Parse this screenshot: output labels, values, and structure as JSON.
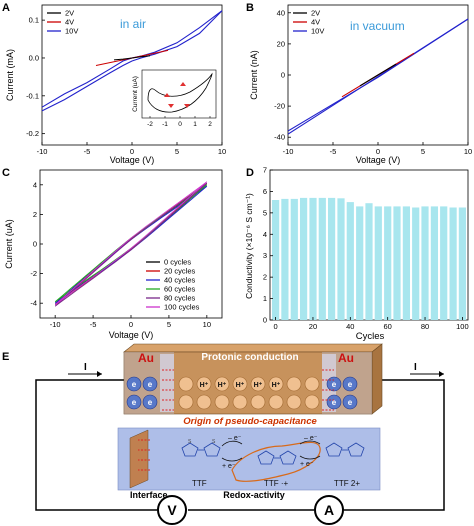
{
  "panels": {
    "A": {
      "letter": "A",
      "annotation": "in air",
      "xlabel": "Voltage (V)",
      "ylabel": "Current (mA)",
      "xticks": [
        "-10",
        "-5",
        "0",
        "5",
        "10"
      ],
      "yticks": [
        "0.1",
        "0.0",
        "-0.1",
        "-0.2"
      ],
      "legend": [
        {
          "label": "2V",
          "color": "#000000"
        },
        {
          "label": "4V",
          "color": "#cc0000"
        },
        {
          "label": "10V",
          "color": "#2222cc"
        }
      ],
      "inset": {
        "ylabel": "Current (uA)",
        "xticks": [
          "-2",
          "-1",
          "0",
          "1",
          "2"
        ]
      }
    },
    "B": {
      "letter": "B",
      "annotation": "in vacuum",
      "xlabel": "Voltage (V)",
      "ylabel": "Current (nA)",
      "xticks": [
        "-10",
        "-5",
        "0",
        "5",
        "10"
      ],
      "yticks": [
        "40",
        "20",
        "0",
        "-20",
        "-40"
      ],
      "legend": [
        {
          "label": "2V",
          "color": "#000000"
        },
        {
          "label": "4V",
          "color": "#cc0000"
        },
        {
          "label": "10V",
          "color": "#2222cc"
        }
      ]
    },
    "C": {
      "letter": "C",
      "xlabel": "Voltage (V)",
      "ylabel": "Current (uA)",
      "xticks": [
        "-10",
        "-5",
        "0",
        "5",
        "10"
      ],
      "yticks": [
        "4",
        "2",
        "0",
        "-2",
        "-4"
      ],
      "legend": [
        {
          "label": "0 cycles",
          "color": "#000000"
        },
        {
          "label": "20 cycles",
          "color": "#cc0000"
        },
        {
          "label": "40 cycles",
          "color": "#2222cc"
        },
        {
          "label": "60 cycles",
          "color": "#22aa22"
        },
        {
          "label": "80 cycles",
          "color": "#7a2a8a"
        },
        {
          "label": "100 cycles",
          "color": "#cc33cc"
        }
      ]
    },
    "D": {
      "letter": "D",
      "xlabel": "Cycles",
      "ylabel": "Conductivity (×10⁻⁶ S cm⁻¹)",
      "xticks": [
        "0",
        "20",
        "40",
        "60",
        "80",
        "100"
      ],
      "yticks": [
        "7",
        "6",
        "5",
        "4",
        "3",
        "2",
        "1",
        "0"
      ],
      "bar_color": "#a8e6ee"
    },
    "E": {
      "letter": "E",
      "title": "Protonic conduction",
      "subtitle": "Origin of pseudo-capacitance",
      "electrode": "Au",
      "current_label": "I",
      "interface_label": "Interface",
      "redox_label": "Redox-activity",
      "ttf_labels": [
        "TTF",
        "TTF ·+",
        "TTF 2+"
      ],
      "electron_label": "e",
      "proton_label": "H⁺",
      "meter_v": "V",
      "meter_a": "A"
    }
  },
  "chart_data": [
    {
      "panel": "A",
      "type": "line",
      "xlabel": "Voltage (V)",
      "ylabel": "Current (mA)",
      "xlim": [
        -10,
        10
      ],
      "ylim": [
        -0.23,
        0.14
      ],
      "series": [
        {
          "name": "2V",
          "x": [
            -2,
            -1,
            0,
            1,
            2
          ],
          "y": [
            -0.005,
            -0.003,
            0.0,
            0.003,
            0.006
          ]
        },
        {
          "name": "4V",
          "x": [
            -4,
            -2,
            0,
            2,
            4
          ],
          "y": [
            -0.02,
            -0.01,
            0.0,
            0.01,
            0.02
          ]
        },
        {
          "name": "10V",
          "x": [
            -10,
            -7.5,
            -5,
            -2.5,
            -1,
            0,
            1,
            2.5,
            5,
            7.5,
            10
          ],
          "y_forward": [
            -0.13,
            -0.095,
            -0.065,
            -0.03,
            -0.008,
            0.0,
            0.005,
            0.015,
            0.04,
            0.08,
            0.125
          ],
          "y_reverse": [
            -0.14,
            -0.11,
            -0.075,
            -0.04,
            -0.02,
            -0.008,
            0.0,
            0.01,
            0.03,
            0.065,
            0.125
          ]
        }
      ]
    },
    {
      "panel": "B",
      "type": "line",
      "xlabel": "Voltage (V)",
      "ylabel": "Current (nA)",
      "xlim": [
        -10,
        10
      ],
      "ylim": [
        -45,
        45
      ],
      "series": [
        {
          "name": "2V",
          "x": [
            -2,
            2
          ],
          "y": [
            -7,
            7
          ]
        },
        {
          "name": "4V",
          "x": [
            -4,
            4
          ],
          "y": [
            -14,
            14
          ]
        },
        {
          "name": "10V",
          "x": [
            -10,
            10
          ],
          "y": [
            -38,
            36
          ]
        }
      ]
    },
    {
      "panel": "C",
      "type": "line",
      "xlabel": "Voltage (V)",
      "ylabel": "Current (uA)",
      "xlim": [
        -12,
        12
      ],
      "ylim": [
        -5,
        5
      ],
      "series": [
        {
          "name": "0 cycles",
          "x": [
            -10,
            10
          ],
          "y": [
            -4.0,
            4.0
          ]
        },
        {
          "name": "20 cycles",
          "x": [
            -10,
            10
          ],
          "y": [
            -4.1,
            4.1
          ]
        },
        {
          "name": "40 cycles",
          "x": [
            -10,
            10
          ],
          "y": [
            -4.0,
            3.9
          ]
        },
        {
          "name": "60 cycles",
          "x": [
            -10,
            10
          ],
          "y": [
            -3.9,
            4.0
          ]
        },
        {
          "name": "80 cycles",
          "x": [
            -10,
            10
          ],
          "y": [
            -4.2,
            4.1
          ]
        },
        {
          "name": "100 cycles",
          "x": [
            -10,
            10
          ],
          "y": [
            -4.1,
            4.2
          ]
        }
      ]
    },
    {
      "panel": "D",
      "type": "bar",
      "xlabel": "Cycles",
      "ylabel": "Conductivity (×10⁻⁶ S cm⁻¹)",
      "ylim": [
        0,
        7
      ],
      "x": [
        0,
        5,
        10,
        15,
        20,
        25,
        30,
        35,
        40,
        45,
        50,
        55,
        60,
        65,
        70,
        75,
        80,
        85,
        90,
        95,
        100
      ],
      "values": [
        5.6,
        5.65,
        5.65,
        5.7,
        5.7,
        5.7,
        5.7,
        5.68,
        5.5,
        5.3,
        5.45,
        5.3,
        5.3,
        5.3,
        5.3,
        5.25,
        5.3,
        5.3,
        5.3,
        5.25,
        5.25
      ]
    }
  ]
}
